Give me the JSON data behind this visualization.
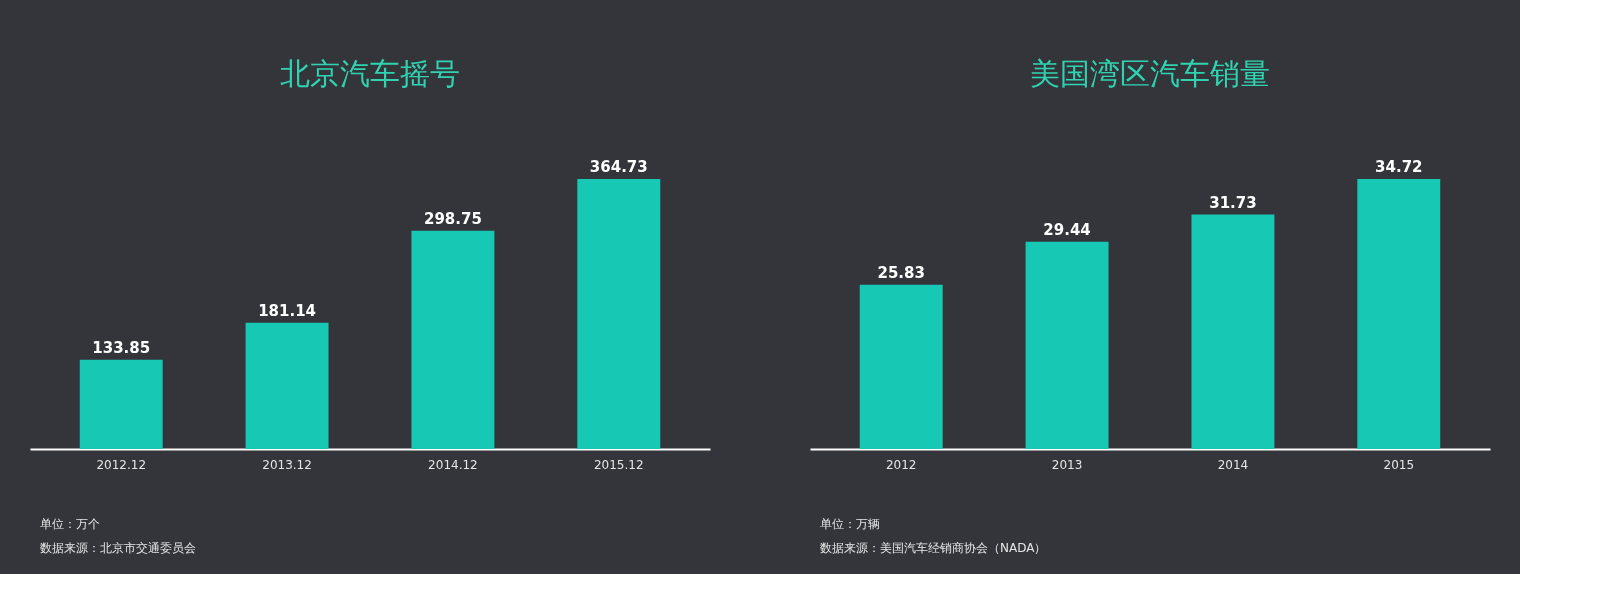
{
  "chart_data": [
    {
      "type": "bar",
      "title": "北京汽车摇号",
      "categories": [
        "2012.12",
        "2013.12",
        "2014.12",
        "2015.12"
      ],
      "values": [
        133.85,
        181.14,
        298.75,
        364.73
      ],
      "color": "#17c8b4",
      "ylim": [
        20,
        364.73
      ],
      "data_labels": true,
      "tick_labels": "x",
      "annotations": [
        "单位：万个",
        "数据来源：北京市交通委员会"
      ]
    },
    {
      "type": "bar",
      "title": "美国湾区汽车销量",
      "categories": [
        "2012",
        "2013",
        "2014",
        "2015"
      ],
      "values": [
        25.83,
        29.44,
        31.73,
        34.72
      ],
      "color": "#17c8b4",
      "ylim": [
        12,
        34.72
      ],
      "data_labels": true,
      "tick_labels": "x",
      "annotations": [
        "单位：万辆",
        "数据来源：美国汽车经销商协会（NADA）"
      ]
    }
  ]
}
